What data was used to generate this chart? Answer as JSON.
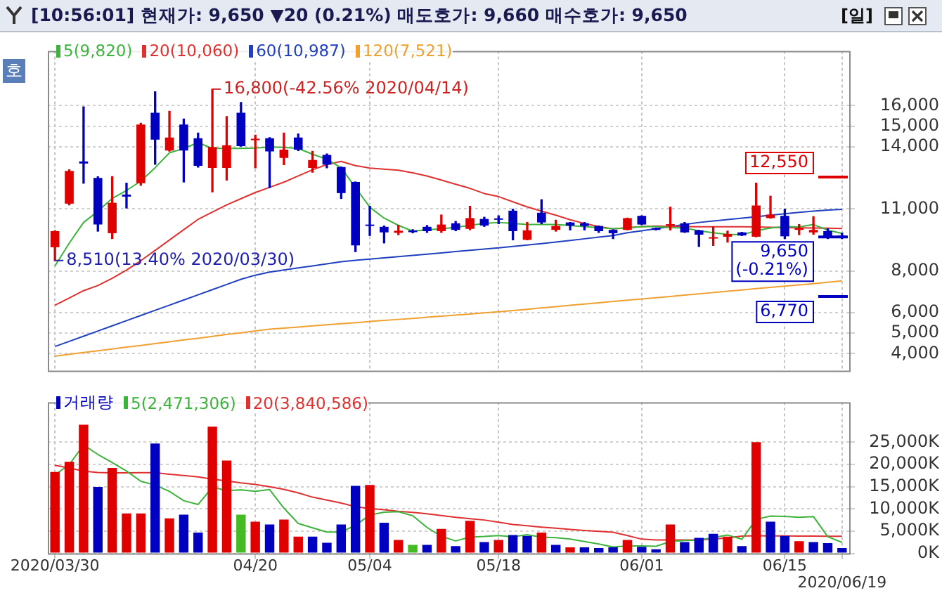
{
  "chart_data": [
    {
      "type": "candlestick",
      "title": "[10:56:01] 현재가: 9,650 ▼20 (0.21%) 매도호가: 9,660 매수호가: 9,650",
      "categories": [
        null,
        null,
        null,
        null,
        null,
        null,
        null,
        null,
        null,
        null,
        null,
        null,
        null,
        null,
        null,
        null,
        null,
        null,
        null,
        null,
        null,
        null,
        null,
        null,
        null,
        null,
        null,
        null,
        null,
        null,
        null,
        null,
        null,
        null,
        null,
        null,
        null,
        null,
        null,
        null,
        null,
        null,
        null,
        null,
        null,
        null,
        null,
        null,
        null,
        null,
        null,
        null,
        null,
        null,
        null,
        null
      ],
      "ohlc": [
        [
          9150,
          9950,
          8510,
          9930
        ],
        [
          11260,
          12900,
          11200,
          12840
        ],
        [
          13300,
          15940,
          12250,
          13200
        ],
        [
          12500,
          12560,
          9930,
          10250
        ],
        [
          9830,
          12570,
          9570,
          11300
        ],
        [
          11700,
          12250,
          11050,
          11600
        ],
        [
          12250,
          15150,
          12150,
          15090
        ],
        [
          15660,
          16670,
          13160,
          14360
        ],
        [
          13830,
          15730,
          13800,
          14460
        ],
        [
          15090,
          15350,
          12310,
          13830
        ],
        [
          14420,
          14670,
          13030,
          13090
        ],
        [
          12990,
          16800,
          11830,
          14000
        ],
        [
          12990,
          15470,
          12400,
          14080
        ],
        [
          15660,
          16150,
          14040,
          14040
        ],
        [
          14330,
          14570,
          12990,
          14380
        ],
        [
          14420,
          14450,
          12040,
          13790
        ],
        [
          13470,
          14670,
          13150,
          13870
        ],
        [
          14460,
          14630,
          13830,
          13870
        ],
        [
          12990,
          13790,
          12780,
          13370
        ],
        [
          13620,
          13660,
          12990,
          13150
        ],
        [
          13030,
          13030,
          11510,
          11770
        ],
        [
          12310,
          12310,
          8940,
          9240
        ],
        [
          10200,
          11130,
          9720,
          10180
        ],
        [
          10140,
          10180,
          9360,
          9870
        ],
        [
          9850,
          10210,
          9760,
          9950
        ],
        [
          9960,
          10000,
          9850,
          9880
        ],
        [
          10140,
          10200,
          9870,
          9930
        ],
        [
          9930,
          10710,
          9870,
          10250
        ],
        [
          10310,
          10400,
          9950,
          9990
        ],
        [
          10040,
          11130,
          10000,
          10560
        ],
        [
          10520,
          10600,
          10160,
          10200
        ],
        [
          10520,
          10670,
          10290,
          10480
        ],
        [
          10920,
          10990,
          9510,
          9930
        ],
        [
          9510,
          10350,
          9510,
          9970
        ],
        [
          10820,
          11450,
          10290,
          10350
        ],
        [
          9990,
          10460,
          9930,
          10180
        ],
        [
          10350,
          10350,
          9990,
          10200
        ],
        [
          10310,
          10350,
          9990,
          10180
        ],
        [
          10180,
          10180,
          9870,
          9930
        ],
        [
          9990,
          9990,
          9570,
          9830
        ],
        [
          9990,
          10560,
          9990,
          10560
        ],
        [
          10670,
          10670,
          10250,
          10250
        ],
        [
          10080,
          10080,
          9990,
          9990
        ],
        [
          10200,
          11090,
          9990,
          10220
        ],
        [
          10310,
          10350,
          9870,
          9870
        ],
        [
          9970,
          9970,
          9190,
          9760
        ],
        [
          9570,
          10140,
          9240,
          9620
        ],
        [
          9660,
          9930,
          9400,
          9790
        ],
        [
          9870,
          9870,
          9720,
          9720
        ],
        [
          9660,
          12250,
          9660,
          11170
        ],
        [
          10560,
          11620,
          10560,
          10730
        ],
        [
          10670,
          10990,
          9570,
          9680
        ],
        [
          9990,
          10250,
          9760,
          10080
        ],
        [
          9870,
          10630,
          9780,
          9990
        ],
        [
          9930,
          10040,
          9570,
          9620
        ],
        [
          9680,
          9830,
          9570,
          9650
        ]
      ],
      "colors": [
        "#e00000",
        "#e00000",
        "#0000c0",
        "#0000c0",
        "#e00000",
        "#0000c0",
        "#e00000",
        "#0000c0",
        "#e00000",
        "#0000c0",
        "#0000c0",
        "#e00000",
        "#e00000",
        "#0000c0",
        "#e00000",
        "#0000c0",
        "#e00000",
        "#0000c0",
        "#e00000",
        "#0000c0",
        "#0000c0",
        "#0000c0",
        "#0000c0",
        "#0000c0",
        "#e00000",
        "#0000c0",
        "#0000c0",
        "#e00000",
        "#0000c0",
        "#e00000",
        "#0000c0",
        "#0000c0",
        "#0000c0",
        "#e00000",
        "#0000c0",
        "#e00000",
        "#0000c0",
        "#0000c0",
        "#0000c0",
        "#0000c0",
        "#e00000",
        "#0000c0",
        "#0000c0",
        "#e00000",
        "#0000c0",
        "#0000c0",
        "#e00000",
        "#e00000",
        "#0000c0",
        "#e00000",
        "#e00000",
        "#0000c0",
        "#e00000",
        "#e00000",
        "#0000c0",
        "#0000c0"
      ],
      "series": [
        {
          "type": "line",
          "name": "5(9,820)",
          "color": "#3cb43c",
          "values": [
            8250,
            9350,
            10350,
            10900,
            11510,
            11900,
            12350,
            13000,
            13720,
            13930,
            14210,
            13930,
            13930,
            13930,
            13950,
            14000,
            13980,
            13930,
            13650,
            13410,
            12990,
            12040,
            11090,
            10560,
            10210,
            9930,
            10000,
            10040,
            10120,
            10210,
            10300,
            10350,
            10300,
            10250,
            10250,
            10250,
            10200,
            10150,
            10100,
            10050,
            10080,
            10150,
            10150,
            10100,
            10080,
            9950,
            9850,
            9780,
            9750,
            9950,
            10080,
            10150,
            10130,
            10250,
            9980,
            9820
          ]
        },
        {
          "type": "line",
          "name": "20(10,060)",
          "color": "#e03030",
          "values": [
            6350,
            6700,
            7050,
            7300,
            7650,
            8050,
            8500,
            9000,
            9500,
            10000,
            10500,
            10850,
            11200,
            11500,
            11800,
            12050,
            12300,
            12600,
            12900,
            13150,
            13300,
            13100,
            12980,
            12930,
            12880,
            12750,
            12600,
            12400,
            12200,
            12000,
            11750,
            11600,
            11350,
            11100,
            10900,
            10700,
            10480,
            10300,
            10150,
            10040,
            10100,
            10150,
            10180,
            10160,
            10150,
            10140,
            10140,
            10140,
            10140,
            10130,
            10120,
            10100,
            10090,
            10080,
            10070,
            10060
          ]
        },
        {
          "type": "line",
          "name": "60(10,987)",
          "color": "#2040c0",
          "values": [
            4350,
            4600,
            4850,
            5100,
            5350,
            5600,
            5850,
            6100,
            6350,
            6600,
            6850,
            7100,
            7350,
            7600,
            7800,
            7950,
            8050,
            8150,
            8250,
            8350,
            8450,
            8520,
            8580,
            8640,
            8700,
            8760,
            8820,
            8880,
            8940,
            9000,
            9060,
            9120,
            9190,
            9260,
            9330,
            9400,
            9480,
            9560,
            9640,
            9720,
            9850,
            9950,
            10050,
            10150,
            10250,
            10350,
            10420,
            10490,
            10560,
            10630,
            10700,
            10770,
            10840,
            10900,
            10950,
            10987
          ]
        },
        {
          "type": "line",
          "name": "120(7,521)",
          "color": "#f0a030",
          "values": [
            3880,
            3970,
            4060,
            4140,
            4230,
            4320,
            4400,
            4490,
            4580,
            4670,
            4750,
            4840,
            4930,
            5010,
            5100,
            5190,
            5240,
            5290,
            5350,
            5400,
            5450,
            5500,
            5560,
            5610,
            5660,
            5710,
            5770,
            5820,
            5870,
            5920,
            5980,
            6030,
            6090,
            6150,
            6220,
            6280,
            6340,
            6400,
            6460,
            6530,
            6590,
            6650,
            6710,
            6770,
            6840,
            6900,
            6960,
            7020,
            7080,
            7150,
            7210,
            7270,
            7330,
            7390,
            7460,
            7521
          ]
        }
      ],
      "ylim": [
        3180,
        18650
      ],
      "yticks": [
        {
          "value": 4000,
          "label": "4,000"
        },
        {
          "value": 5000,
          "label": "5,000"
        },
        {
          "value": 6000,
          "label": "6,000"
        },
        {
          "value": 8000,
          "label": "8,000"
        },
        {
          "value": 11000,
          "label": "11,000"
        },
        {
          "value": 14000,
          "label": "14,000"
        },
        {
          "value": 15000,
          "label": "15,000"
        },
        {
          "value": 16000,
          "label": "16,000"
        }
      ],
      "ref_lines": [
        {
          "axis": "y",
          "value": 12550,
          "label": "12,550",
          "color": "#e00000"
        },
        {
          "axis": "y",
          "value": 9650,
          "label": "9,650 (-0.21%)",
          "color": "#0000c0"
        },
        {
          "axis": "y",
          "value": 6770,
          "label": "6,770",
          "color": "#0000c0"
        }
      ],
      "annotations": [
        "[일]",
        "호",
        "16,800(-42.56% 2020/04/14)",
        "8,510(13.40% 2020/03/30)"
      ],
      "grid": true,
      "legend": "top left",
      "tick_labels": "y"
    },
    {
      "type": "bar",
      "categories": [
        "2020/03/30",
        null,
        null,
        null,
        null,
        null,
        null,
        null,
        null,
        null,
        null,
        null,
        null,
        null,
        "04/20",
        null,
        null,
        null,
        null,
        null,
        null,
        null,
        "05/04",
        null,
        null,
        null,
        null,
        null,
        null,
        null,
        null,
        "05/18",
        null,
        null,
        null,
        null,
        null,
        null,
        null,
        null,
        null,
        "06/01",
        null,
        null,
        null,
        null,
        null,
        null,
        null,
        null,
        null,
        "06/15",
        null,
        null,
        null,
        "2020/06/19"
      ],
      "series": [
        {
          "type": "bar",
          "name": "거래량",
          "values": [
            18310,
            20600,
            28940,
            14930,
            19230,
            8970,
            8970,
            24720,
            7870,
            8700,
            4670,
            28480,
            20880,
            8700,
            7140,
            6500,
            7600,
            3750,
            3750,
            2380,
            6500,
            15200,
            15380,
            6870,
            3020,
            1920,
            1920,
            5490,
            1650,
            7330,
            2560,
            3020,
            4120,
            3940,
            4670,
            1920,
            1370,
            1370,
            1190,
            1370,
            3020,
            1460,
            920,
            6500,
            2560,
            3480,
            4400,
            3750,
            1650,
            25000,
            7140,
            3940,
            2750,
            2560,
            2290,
            1190
          ],
          "colors": [
            "#e00000",
            "#e00000",
            "#e00000",
            "#0000c0",
            "#e00000",
            "#e00000",
            "#e00000",
            "#0000c0",
            "#e00000",
            "#0000c0",
            "#0000c0",
            "#e00000",
            "#e00000",
            "#44bb22",
            "#e00000",
            "#0000c0",
            "#e00000",
            "#e00000",
            "#0000c0",
            "#0000c0",
            "#0000c0",
            "#0000c0",
            "#e00000",
            "#0000c0",
            "#e00000",
            "#44bb22",
            "#0000c0",
            "#e00000",
            "#0000c0",
            "#e00000",
            "#0000c0",
            "#e00000",
            "#0000c0",
            "#0000c0",
            "#e00000",
            "#0000c0",
            "#e00000",
            "#0000c0",
            "#0000c0",
            "#0000c0",
            "#e00000",
            "#0000c0",
            "#0000c0",
            "#e00000",
            "#0000c0",
            "#0000c0",
            "#0000c0",
            "#e00000",
            "#0000c0",
            "#e00000",
            "#0000c0",
            "#0000c0",
            "#e00000",
            "#0000c0",
            "#0000c0",
            "#0000c0"
          ]
        },
        {
          "type": "line",
          "name": "5(2,471,306)",
          "color": "#3cb43c",
          "values": [
            17670,
            19960,
            24370,
            22250,
            20400,
            18530,
            16210,
            15360,
            13950,
            11850,
            10990,
            14890,
            14120,
            14290,
            13970,
            14340,
            10160,
            6740,
            5750,
            4800,
            4800,
            6320,
            8640,
            9270,
            9390,
            8480,
            5820,
            3840,
            2800,
            3660,
            3790,
            4010,
            3740,
            4190,
            3660,
            3530,
            3200,
            2650,
            2100,
            1440,
            1660,
            1680,
            1590,
            2650,
            2890,
            2980,
            3570,
            4140,
            3170,
            7660,
            8390,
            8300,
            8100,
            8280,
            3740,
            2471
          ]
        },
        {
          "type": "line",
          "name": "20(3,840,586)",
          "color": "#e03030",
          "values": [
            19800,
            19200,
            18500,
            18200,
            18100,
            18100,
            18150,
            18130,
            17800,
            17500,
            17200,
            16700,
            16300,
            15840,
            15500,
            15000,
            14400,
            13600,
            12640,
            12000,
            11300,
            10500,
            10100,
            9800,
            9450,
            9200,
            8900,
            8500,
            8100,
            7800,
            7500,
            7000,
            6500,
            6200,
            5900,
            5650,
            5400,
            5150,
            4950,
            4750,
            4000,
            3200,
            3000,
            3000,
            3000,
            3020,
            3200,
            3480,
            3900,
            3950,
            3940,
            3940,
            3900,
            3880,
            3860,
            3840
          ]
        }
      ],
      "ylim": [
        0,
        34000
      ],
      "yticks": [
        {
          "value": 0,
          "label": "0K"
        },
        {
          "value": 5000,
          "label": "5,000K"
        },
        {
          "value": 10000,
          "label": "10,000K"
        },
        {
          "value": 15000,
          "label": "15,000K"
        },
        {
          "value": 20000,
          "label": "20,000K"
        },
        {
          "value": 25000,
          "label": "25,000K"
        }
      ],
      "grid": true,
      "legend": "top left"
    }
  ]
}
